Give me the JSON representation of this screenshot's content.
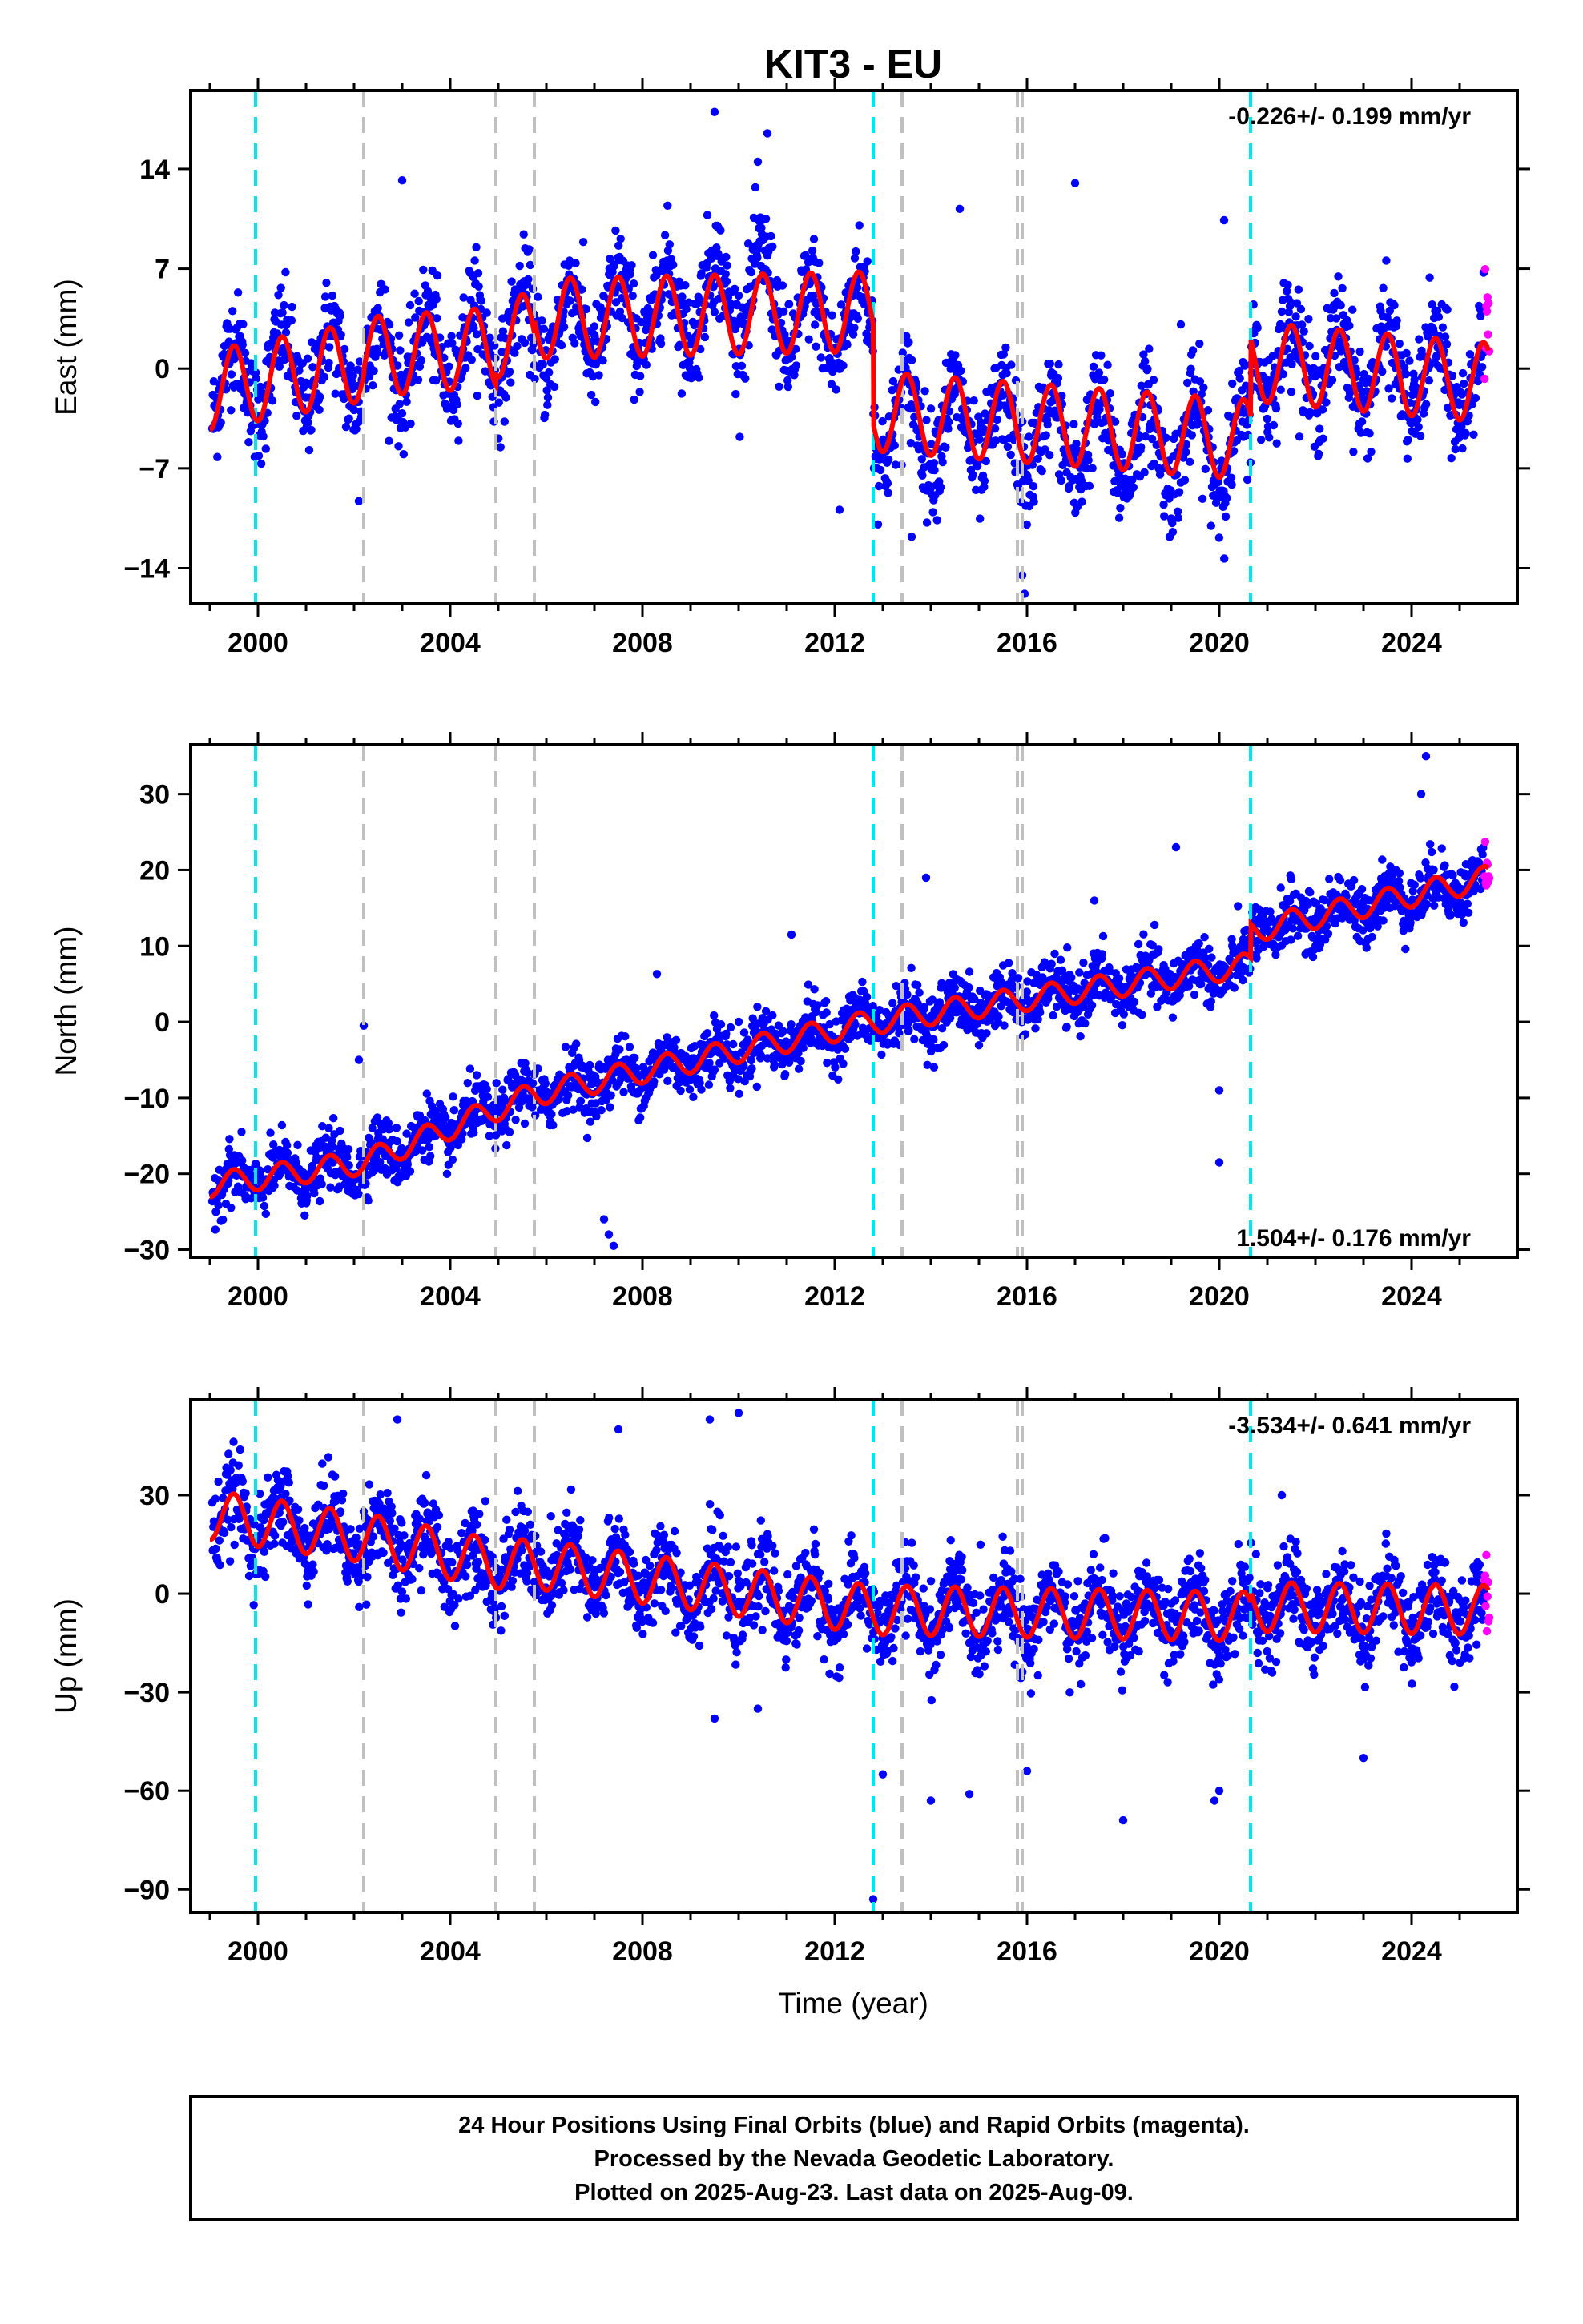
{
  "chart_data": {
    "type": "scatter",
    "title": "KIT3 - EU",
    "xlabel": "Time (year)",
    "x_ticks": [
      2000,
      2004,
      2008,
      2012,
      2016,
      2020,
      2024
    ],
    "xlim": [
      1998.6,
      2026.2
    ],
    "series_colors": {
      "final_orbits": "#0000ff",
      "rapid_orbits": "#ff00ff",
      "model_fit": "#ff0000"
    },
    "event_lines": [
      {
        "x": 1999.95,
        "color": "#00e5ee"
      },
      {
        "x": 2002.2,
        "color": "#c0c0c0"
      },
      {
        "x": 2004.95,
        "color": "#c0c0c0"
      },
      {
        "x": 2005.75,
        "color": "#c0c0c0"
      },
      {
        "x": 2012.8,
        "color": "#00e5ee"
      },
      {
        "x": 2013.4,
        "color": "#c0c0c0"
      },
      {
        "x": 2015.8,
        "color": "#c0c0c0"
      },
      {
        "x": 2015.9,
        "color": "#c0c0c0"
      },
      {
        "x": 2020.65,
        "color": "#00e5ee"
      }
    ],
    "panels": [
      {
        "ylabel": "East (mm)",
        "ylim": [
          -16.5,
          19.5
        ],
        "y_ticks": [
          "14",
          "7",
          "0",
          "-7",
          "-14"
        ],
        "y_tick_values": [
          14,
          7,
          0,
          -7,
          -14
        ],
        "rate_label": "-0.226+/- 0.199 mm/yr",
        "rate_position": "top-right",
        "fit_key": [
          [
            1999.0,
            -1.5
          ],
          [
            2002.2,
            0.5
          ],
          [
            2002.21,
            0.8
          ],
          [
            2004.95,
            1.5
          ],
          [
            2004.96,
            2.2
          ],
          [
            2005.75,
            2.5
          ],
          [
            2005.76,
            3.5
          ],
          [
            2012.8,
            4.0
          ],
          [
            2012.81,
            -3.0
          ],
          [
            2020.65,
            -5.0
          ],
          [
            2020.66,
            0.5
          ],
          [
            2025.6,
            -1.0
          ]
        ],
        "fit_amplitude": 2.8,
        "scatter_sigma": 1.8,
        "scatter_sections": [
          [
            1999.0,
            -1.0
          ],
          [
            2002.2,
            0.5
          ],
          [
            2004.95,
            1.8
          ],
          [
            2005.75,
            2.7
          ],
          [
            2008.0,
            4.0
          ],
          [
            2010.5,
            5.5
          ],
          [
            2011.2,
            3.0
          ],
          [
            2012.8,
            3.5
          ],
          [
            2012.81,
            -3.5
          ],
          [
            2017.0,
            -5.0
          ],
          [
            2020.65,
            -5.5
          ],
          [
            2020.66,
            1.0
          ],
          [
            2025.6,
            -1.0
          ]
        ],
        "outliers": [
          [
            2010.6,
            16.5
          ],
          [
            2010.4,
            14.5
          ],
          [
            2009.5,
            18.0
          ],
          [
            2003.0,
            13.2
          ],
          [
            2017.0,
            13.0
          ],
          [
            2012.1,
            -9.9
          ],
          [
            2002.1,
            -9.3
          ],
          [
            2013.6,
            -11.8
          ],
          [
            2015.9,
            -14.5
          ],
          [
            2015.95,
            -15.8
          ],
          [
            2014.6,
            11.2
          ],
          [
            2019.2,
            3.1
          ],
          [
            2020.1,
            10.4
          ]
        ]
      },
      {
        "ylabel": "North (mm)",
        "ylim": [
          -31.0,
          36.5
        ],
        "y_ticks": [
          "30",
          "20",
          "10",
          "0",
          "-10",
          "-20",
          "-30"
        ],
        "y_tick_values": [
          30,
          20,
          10,
          0,
          -10,
          -20,
          -30
        ],
        "rate_label": "1.504+/- 0.176 mm/yr",
        "rate_position": "bottom-right",
        "fit_key": [
          [
            1999.0,
            -21.5
          ],
          [
            2002.2,
            -18.5
          ],
          [
            2004.95,
            -11.5
          ],
          [
            2005.75,
            -9.5
          ],
          [
            2012.8,
            0.0
          ],
          [
            2020.65,
            7.5
          ],
          [
            2020.66,
            12.0
          ],
          [
            2025.6,
            19.0
          ]
        ],
        "fit_amplitude": 1.6,
        "scatter_sigma": 1.9,
        "scatter_sections": [
          [
            1999.0,
            -21.5
          ],
          [
            2002.2,
            -18.5
          ],
          [
            2004.95,
            -11.5
          ],
          [
            2005.75,
            -9.5
          ],
          [
            2012.8,
            0.0
          ],
          [
            2020.65,
            7.5
          ],
          [
            2020.66,
            12.0
          ],
          [
            2025.6,
            19.0
          ]
        ],
        "outliers": [
          [
            2002.2,
            -0.5
          ],
          [
            2002.1,
            -5.0
          ],
          [
            2007.3,
            -28.0
          ],
          [
            2007.4,
            -29.5
          ],
          [
            2007.2,
            -26.0
          ],
          [
            2008.3,
            6.3
          ],
          [
            2013.9,
            19.0
          ],
          [
            2017.4,
            16.0
          ],
          [
            2019.1,
            23.0
          ],
          [
            2020.0,
            -9.0
          ],
          [
            2020.0,
            -18.5
          ],
          [
            2024.3,
            35.0
          ],
          [
            2024.2,
            30.0
          ],
          [
            2011.1,
            11.5
          ]
        ]
      },
      {
        "ylabel": "Up (mm)",
        "ylim": [
          -97.0,
          59.0
        ],
        "y_ticks": [
          "30",
          "0",
          "-30",
          "-60",
          "-90"
        ],
        "y_tick_values": [
          30,
          0,
          -30,
          -60,
          -90
        ],
        "rate_label": "-3.534+/- 0.641 mm/yr",
        "rate_position": "top-right",
        "fit_key": [
          [
            1999.0,
            24.0
          ],
          [
            2002.2,
            17.0
          ],
          [
            2004.95,
            9.0
          ],
          [
            2005.75,
            9.0
          ],
          [
            2012.8,
            -5.0
          ],
          [
            2020.65,
            -7.0
          ],
          [
            2020.66,
            -4.0
          ],
          [
            2025.6,
            -5.0
          ]
        ],
        "fit_amplitude": 7.5,
        "scatter_sigma": 6.5,
        "scatter_sections": [
          [
            1999.0,
            24.0
          ],
          [
            2002.2,
            17.0
          ],
          [
            2004.95,
            9.0
          ],
          [
            2005.75,
            9.0
          ],
          [
            2012.8,
            -5.0
          ],
          [
            2020.65,
            -7.0
          ],
          [
            2020.66,
            -4.0
          ],
          [
            2025.6,
            -5.0
          ]
        ],
        "outliers": [
          [
            2012.8,
            -93.0
          ],
          [
            2010.0,
            55.0
          ],
          [
            2009.4,
            53.0
          ],
          [
            2007.5,
            50.0
          ],
          [
            2002.9,
            53.0
          ],
          [
            2009.5,
            -38.0
          ],
          [
            2010.4,
            -35.0
          ],
          [
            2014.0,
            -63.0
          ],
          [
            2014.8,
            -61.0
          ],
          [
            2016.0,
            -54.0
          ],
          [
            2018.0,
            -69.0
          ],
          [
            2020.0,
            -60.0
          ],
          [
            2019.9,
            -63.0
          ],
          [
            2023.0,
            -50.0
          ],
          [
            2021.3,
            30.0
          ],
          [
            2013.0,
            -55.0
          ]
        ]
      }
    ]
  },
  "footer": {
    "line1": "24 Hour Positions Using Final Orbits (blue) and Rapid Orbits (magenta).",
    "line2": "Processed by the Nevada Geodetic Laboratory.",
    "line3": "Plotted on 2025-Aug-23. Last data on 2025-Aug-09."
  }
}
